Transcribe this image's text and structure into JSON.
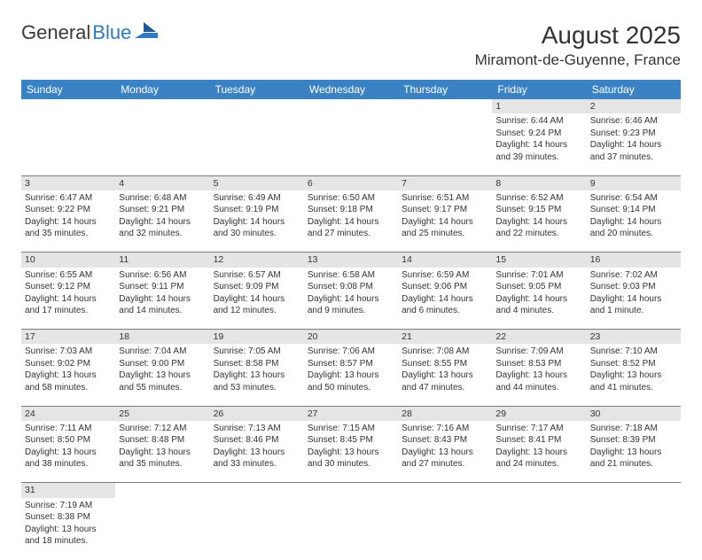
{
  "logo": {
    "text1": "General",
    "text2": "Blue"
  },
  "title": "August 2025",
  "location": "Miramont-de-Guyenne, France",
  "colors": {
    "header_bg": "#3b82c4",
    "header_text": "#ffffff",
    "daynum_bg": "#e5e5e5",
    "text": "#333333",
    "logo_blue": "#2f7bc1",
    "border": "#7a7a7a",
    "background": "#ffffff"
  },
  "fonts": {
    "title_size": 28,
    "location_size": 17,
    "header_size": 12,
    "cell_size": 10
  },
  "day_headers": [
    "Sunday",
    "Monday",
    "Tuesday",
    "Wednesday",
    "Thursday",
    "Friday",
    "Saturday"
  ],
  "weeks": [
    [
      null,
      null,
      null,
      null,
      null,
      {
        "n": "1",
        "sr": "Sunrise: 6:44 AM",
        "ss": "Sunset: 9:24 PM",
        "d1": "Daylight: 14 hours",
        "d2": "and 39 minutes."
      },
      {
        "n": "2",
        "sr": "Sunrise: 6:46 AM",
        "ss": "Sunset: 9:23 PM",
        "d1": "Daylight: 14 hours",
        "d2": "and 37 minutes."
      }
    ],
    [
      {
        "n": "3",
        "sr": "Sunrise: 6:47 AM",
        "ss": "Sunset: 9:22 PM",
        "d1": "Daylight: 14 hours",
        "d2": "and 35 minutes."
      },
      {
        "n": "4",
        "sr": "Sunrise: 6:48 AM",
        "ss": "Sunset: 9:21 PM",
        "d1": "Daylight: 14 hours",
        "d2": "and 32 minutes."
      },
      {
        "n": "5",
        "sr": "Sunrise: 6:49 AM",
        "ss": "Sunset: 9:19 PM",
        "d1": "Daylight: 14 hours",
        "d2": "and 30 minutes."
      },
      {
        "n": "6",
        "sr": "Sunrise: 6:50 AM",
        "ss": "Sunset: 9:18 PM",
        "d1": "Daylight: 14 hours",
        "d2": "and 27 minutes."
      },
      {
        "n": "7",
        "sr": "Sunrise: 6:51 AM",
        "ss": "Sunset: 9:17 PM",
        "d1": "Daylight: 14 hours",
        "d2": "and 25 minutes."
      },
      {
        "n": "8",
        "sr": "Sunrise: 6:52 AM",
        "ss": "Sunset: 9:15 PM",
        "d1": "Daylight: 14 hours",
        "d2": "and 22 minutes."
      },
      {
        "n": "9",
        "sr": "Sunrise: 6:54 AM",
        "ss": "Sunset: 9:14 PM",
        "d1": "Daylight: 14 hours",
        "d2": "and 20 minutes."
      }
    ],
    [
      {
        "n": "10",
        "sr": "Sunrise: 6:55 AM",
        "ss": "Sunset: 9:12 PM",
        "d1": "Daylight: 14 hours",
        "d2": "and 17 minutes."
      },
      {
        "n": "11",
        "sr": "Sunrise: 6:56 AM",
        "ss": "Sunset: 9:11 PM",
        "d1": "Daylight: 14 hours",
        "d2": "and 14 minutes."
      },
      {
        "n": "12",
        "sr": "Sunrise: 6:57 AM",
        "ss": "Sunset: 9:09 PM",
        "d1": "Daylight: 14 hours",
        "d2": "and 12 minutes."
      },
      {
        "n": "13",
        "sr": "Sunrise: 6:58 AM",
        "ss": "Sunset: 9:08 PM",
        "d1": "Daylight: 14 hours",
        "d2": "and 9 minutes."
      },
      {
        "n": "14",
        "sr": "Sunrise: 6:59 AM",
        "ss": "Sunset: 9:06 PM",
        "d1": "Daylight: 14 hours",
        "d2": "and 6 minutes."
      },
      {
        "n": "15",
        "sr": "Sunrise: 7:01 AM",
        "ss": "Sunset: 9:05 PM",
        "d1": "Daylight: 14 hours",
        "d2": "and 4 minutes."
      },
      {
        "n": "16",
        "sr": "Sunrise: 7:02 AM",
        "ss": "Sunset: 9:03 PM",
        "d1": "Daylight: 14 hours",
        "d2": "and 1 minute."
      }
    ],
    [
      {
        "n": "17",
        "sr": "Sunrise: 7:03 AM",
        "ss": "Sunset: 9:02 PM",
        "d1": "Daylight: 13 hours",
        "d2": "and 58 minutes."
      },
      {
        "n": "18",
        "sr": "Sunrise: 7:04 AM",
        "ss": "Sunset: 9:00 PM",
        "d1": "Daylight: 13 hours",
        "d2": "and 55 minutes."
      },
      {
        "n": "19",
        "sr": "Sunrise: 7:05 AM",
        "ss": "Sunset: 8:58 PM",
        "d1": "Daylight: 13 hours",
        "d2": "and 53 minutes."
      },
      {
        "n": "20",
        "sr": "Sunrise: 7:06 AM",
        "ss": "Sunset: 8:57 PM",
        "d1": "Daylight: 13 hours",
        "d2": "and 50 minutes."
      },
      {
        "n": "21",
        "sr": "Sunrise: 7:08 AM",
        "ss": "Sunset: 8:55 PM",
        "d1": "Daylight: 13 hours",
        "d2": "and 47 minutes."
      },
      {
        "n": "22",
        "sr": "Sunrise: 7:09 AM",
        "ss": "Sunset: 8:53 PM",
        "d1": "Daylight: 13 hours",
        "d2": "and 44 minutes."
      },
      {
        "n": "23",
        "sr": "Sunrise: 7:10 AM",
        "ss": "Sunset: 8:52 PM",
        "d1": "Daylight: 13 hours",
        "d2": "and 41 minutes."
      }
    ],
    [
      {
        "n": "24",
        "sr": "Sunrise: 7:11 AM",
        "ss": "Sunset: 8:50 PM",
        "d1": "Daylight: 13 hours",
        "d2": "and 38 minutes."
      },
      {
        "n": "25",
        "sr": "Sunrise: 7:12 AM",
        "ss": "Sunset: 8:48 PM",
        "d1": "Daylight: 13 hours",
        "d2": "and 35 minutes."
      },
      {
        "n": "26",
        "sr": "Sunrise: 7:13 AM",
        "ss": "Sunset: 8:46 PM",
        "d1": "Daylight: 13 hours",
        "d2": "and 33 minutes."
      },
      {
        "n": "27",
        "sr": "Sunrise: 7:15 AM",
        "ss": "Sunset: 8:45 PM",
        "d1": "Daylight: 13 hours",
        "d2": "and 30 minutes."
      },
      {
        "n": "28",
        "sr": "Sunrise: 7:16 AM",
        "ss": "Sunset: 8:43 PM",
        "d1": "Daylight: 13 hours",
        "d2": "and 27 minutes."
      },
      {
        "n": "29",
        "sr": "Sunrise: 7:17 AM",
        "ss": "Sunset: 8:41 PM",
        "d1": "Daylight: 13 hours",
        "d2": "and 24 minutes."
      },
      {
        "n": "30",
        "sr": "Sunrise: 7:18 AM",
        "ss": "Sunset: 8:39 PM",
        "d1": "Daylight: 13 hours",
        "d2": "and 21 minutes."
      }
    ],
    [
      {
        "n": "31",
        "sr": "Sunrise: 7:19 AM",
        "ss": "Sunset: 8:38 PM",
        "d1": "Daylight: 13 hours",
        "d2": "and 18 minutes."
      },
      null,
      null,
      null,
      null,
      null,
      null
    ]
  ]
}
